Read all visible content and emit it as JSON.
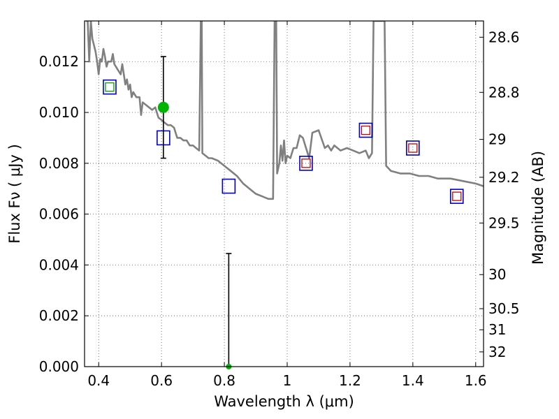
{
  "chart_data": {
    "type": "scatter",
    "xlabel": "Wavelength  λ (μm)",
    "ylabel": "Flux  Fν  ( μJy )",
    "y2label": "Magnitude (AB)",
    "xlim": [
      0.355,
      1.625
    ],
    "ylim": [
      0.0,
      0.0136
    ],
    "grid": true,
    "x_ticks": [
      0.4,
      0.6,
      0.8,
      1.0,
      1.2,
      1.4,
      1.6
    ],
    "x_tick_labels": [
      "0.4",
      "0.6",
      "0.8",
      "1",
      "1.2",
      "1.4",
      "1.6"
    ],
    "y_ticks": [
      0.0,
      0.002,
      0.004,
      0.006,
      0.008,
      0.01,
      0.012
    ],
    "y_tick_labels": [
      "0.000",
      "0.002",
      "0.004",
      "0.006",
      "0.008",
      "0.010",
      "0.012"
    ],
    "y2_ticks": [
      {
        "label": "28.6",
        "flux": 0.01296
      },
      {
        "label": "28.8",
        "flux": 0.01079
      },
      {
        "label": "29",
        "flux": 0.00894
      },
      {
        "label": "29.2",
        "flux": 0.00745
      },
      {
        "label": "29.5",
        "flux": 0.00565
      },
      {
        "label": "30",
        "flux": 0.00362
      },
      {
        "label": "30.5",
        "flux": 0.00228
      },
      {
        "label": "31",
        "flux": 0.00145
      },
      {
        "label": "32",
        "flux": 0.00058
      }
    ],
    "colors": {
      "sed": "#808080",
      "model_box": "#0000cc",
      "observed_box": "#cc0000",
      "detection": "#00b400",
      "errorbar": "#000000",
      "grid": "#555555"
    },
    "series": [
      {
        "kind": "sed_model",
        "points": [
          [
            0.36,
            0.0136
          ],
          [
            0.365,
            0.0136
          ],
          [
            0.37,
            0.012
          ],
          [
            0.375,
            0.0136
          ],
          [
            0.38,
            0.0129
          ],
          [
            0.39,
            0.0124
          ],
          [
            0.395,
            0.012
          ],
          [
            0.4,
            0.0115
          ],
          [
            0.405,
            0.0121
          ],
          [
            0.41,
            0.012
          ],
          [
            0.415,
            0.0125
          ],
          [
            0.42,
            0.0122
          ],
          [
            0.425,
            0.0118
          ],
          [
            0.43,
            0.012
          ],
          [
            0.44,
            0.012
          ],
          [
            0.445,
            0.0123
          ],
          [
            0.45,
            0.0119
          ],
          [
            0.46,
            0.0117
          ],
          [
            0.47,
            0.0115
          ],
          [
            0.475,
            0.0119
          ],
          [
            0.48,
            0.0115
          ],
          [
            0.485,
            0.0111
          ],
          [
            0.49,
            0.0113
          ],
          [
            0.495,
            0.0109
          ],
          [
            0.5,
            0.0111
          ],
          [
            0.505,
            0.0106
          ],
          [
            0.51,
            0.0108
          ],
          [
            0.52,
            0.0106
          ],
          [
            0.53,
            0.0106
          ],
          [
            0.535,
            0.0099
          ],
          [
            0.54,
            0.0104
          ],
          [
            0.55,
            0.0103
          ],
          [
            0.56,
            0.0102
          ],
          [
            0.57,
            0.0101
          ],
          [
            0.58,
            0.0102
          ],
          [
            0.59,
            0.0098
          ],
          [
            0.6,
            0.0097
          ],
          [
            0.61,
            0.0096
          ],
          [
            0.62,
            0.0095
          ],
          [
            0.63,
            0.0095
          ],
          [
            0.64,
            0.0094
          ],
          [
            0.65,
            0.009
          ],
          [
            0.66,
            0.009
          ],
          [
            0.67,
            0.0089
          ],
          [
            0.68,
            0.0089
          ],
          [
            0.69,
            0.0087
          ],
          [
            0.7,
            0.0087
          ],
          [
            0.71,
            0.0086
          ],
          [
            0.72,
            0.0085
          ],
          [
            0.725,
            0.0136
          ],
          [
            0.728,
            0.0136
          ],
          [
            0.73,
            0.0084
          ],
          [
            0.74,
            0.0083
          ],
          [
            0.75,
            0.0082
          ],
          [
            0.76,
            0.0082
          ],
          [
            0.78,
            0.0081
          ],
          [
            0.8,
            0.0079
          ],
          [
            0.82,
            0.0077
          ],
          [
            0.84,
            0.0075
          ],
          [
            0.86,
            0.0072
          ],
          [
            0.88,
            0.007
          ],
          [
            0.9,
            0.0068
          ],
          [
            0.92,
            0.0067
          ],
          [
            0.94,
            0.0066
          ],
          [
            0.955,
            0.0066
          ],
          [
            0.96,
            0.0136
          ],
          [
            0.965,
            0.0136
          ],
          [
            0.968,
            0.0076
          ],
          [
            0.975,
            0.008
          ],
          [
            0.98,
            0.0087
          ],
          [
            0.985,
            0.0081
          ],
          [
            0.99,
            0.0089
          ],
          [
            0.995,
            0.008
          ],
          [
            1.0,
            0.0083
          ],
          [
            1.01,
            0.0082
          ],
          [
            1.02,
            0.0086
          ],
          [
            1.03,
            0.0086
          ],
          [
            1.04,
            0.0091
          ],
          [
            1.05,
            0.009
          ],
          [
            1.06,
            0.0086
          ],
          [
            1.07,
            0.0082
          ],
          [
            1.08,
            0.0092
          ],
          [
            1.1,
            0.0093
          ],
          [
            1.12,
            0.0086
          ],
          [
            1.13,
            0.0087
          ],
          [
            1.14,
            0.0085
          ],
          [
            1.15,
            0.0087
          ],
          [
            1.17,
            0.0085
          ],
          [
            1.19,
            0.0086
          ],
          [
            1.21,
            0.0085
          ],
          [
            1.23,
            0.0084
          ],
          [
            1.25,
            0.0085
          ],
          [
            1.26,
            0.0082
          ],
          [
            1.27,
            0.0084
          ],
          [
            1.275,
            0.0136
          ],
          [
            1.285,
            0.0136
          ],
          [
            1.3,
            0.0136
          ],
          [
            1.31,
            0.0136
          ],
          [
            1.315,
            0.0079
          ],
          [
            1.33,
            0.0077
          ],
          [
            1.36,
            0.0076
          ],
          [
            1.39,
            0.0076
          ],
          [
            1.42,
            0.0075
          ],
          [
            1.45,
            0.0075
          ],
          [
            1.48,
            0.0074
          ],
          [
            1.52,
            0.0074
          ],
          [
            1.56,
            0.0073
          ],
          [
            1.6,
            0.0072
          ],
          [
            1.625,
            0.0071
          ]
        ]
      },
      {
        "kind": "model_photometry",
        "points": [
          {
            "x": 0.435,
            "y": 0.011
          },
          {
            "x": 0.606,
            "y": 0.009
          },
          {
            "x": 0.814,
            "y": 0.0071
          },
          {
            "x": 1.06,
            "y": 0.008
          },
          {
            "x": 1.25,
            "y": 0.0093
          },
          {
            "x": 1.4,
            "y": 0.0086
          },
          {
            "x": 1.54,
            "y": 0.0067
          }
        ]
      },
      {
        "kind": "observed_photometry",
        "points": [
          {
            "x": 0.435,
            "y": 0.011,
            "color": "#00a000"
          },
          {
            "x": 1.06,
            "y": 0.008,
            "color": "#cc0000"
          },
          {
            "x": 1.25,
            "y": 0.0093,
            "color": "#cc0000"
          },
          {
            "x": 1.4,
            "y": 0.0086,
            "color": "#cc0000"
          },
          {
            "x": 1.54,
            "y": 0.0067,
            "color": "#cc0000"
          }
        ]
      },
      {
        "kind": "detections",
        "points": [
          {
            "x": 0.606,
            "y": 0.0102,
            "y_low": 0.0082,
            "y_high": 0.0122
          },
          {
            "x": 0.814,
            "y": 0.0,
            "y_low": 0.0,
            "y_high": 0.00445
          }
        ]
      }
    ]
  }
}
